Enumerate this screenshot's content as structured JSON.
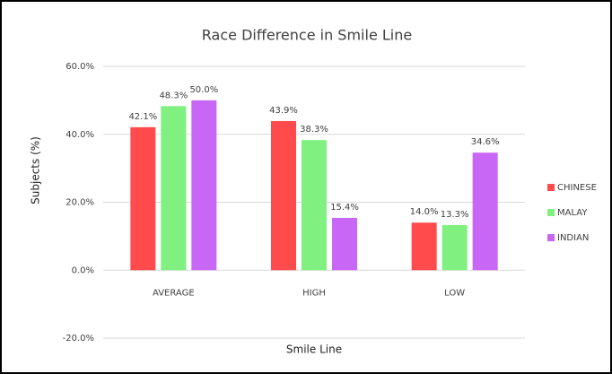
{
  "chart_data": {
    "type": "bar",
    "title": "Race Difference in Smile Line",
    "x_label": "Smile Line",
    "y_label": "Subjects (%)",
    "categories": [
      "AVERAGE",
      "HIGH",
      "LOW"
    ],
    "series": [
      {
        "name": "CHINESE",
        "color": "#ff4b4b",
        "values": [
          42.1,
          43.9,
          14.0
        ],
        "value_labels": [
          "42.1%",
          "43.9%",
          "14.0%"
        ]
      },
      {
        "name": "MALAY",
        "color": "#80f080",
        "values": [
          48.3,
          38.3,
          13.3
        ],
        "value_labels": [
          "48.3%",
          "38.3%",
          "13.3%"
        ]
      },
      {
        "name": "INDIAN",
        "color": "#c866f5",
        "values": [
          50.0,
          15.4,
          34.6
        ],
        "value_labels": [
          "50.0%",
          "15.4%",
          "34.6%"
        ]
      }
    ],
    "ylim": [
      -20,
      60
    ],
    "yticks": [
      {
        "value": -20,
        "label": "-20.0%"
      },
      {
        "value": 0,
        "label": "0.0%"
      },
      {
        "value": 20,
        "label": "20.0%"
      },
      {
        "value": 40,
        "label": "40.0%"
      },
      {
        "value": 60,
        "label": "60.0%"
      }
    ],
    "grid": true,
    "legend": "right"
  }
}
